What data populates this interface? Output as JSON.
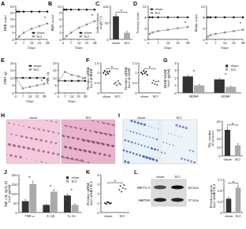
{
  "chart_data": [
    {
      "title": "A",
      "type": "line",
      "x": [
        1,
        3,
        7,
        14,
        21,
        28
      ],
      "xlabel": "Days",
      "ylabel": "BBB score",
      "xlim": [
        0,
        28
      ],
      "xticks": [
        0,
        7,
        14,
        21,
        28
      ],
      "ylim": [
        0,
        25
      ],
      "yticks": [
        0,
        5,
        10,
        15,
        20,
        25
      ],
      "legend": "lower right",
      "series": [
        {
          "name": "sham",
          "color": "#111111",
          "marker": "circle",
          "values": [
            21,
            21,
            21,
            21,
            21,
            21
          ]
        },
        {
          "name": "SCI",
          "color": "#888888",
          "marker": "square",
          "values": [
            0,
            2,
            5,
            8,
            10,
            12
          ]
        }
      ],
      "annotations": [
        "*"
      ]
    },
    {
      "title": "B",
      "type": "line",
      "x": [
        1,
        3,
        7,
        14,
        21,
        28
      ],
      "xlabel": "Days",
      "ylabel": "BMS score",
      "xlim": [
        0,
        28
      ],
      "xticks": [
        0,
        7,
        14,
        21,
        28
      ],
      "ylim": [
        0,
        10
      ],
      "yticks": [
        0,
        2,
        4,
        6,
        8,
        10
      ],
      "legend": "lower right",
      "series": [
        {
          "name": "sham",
          "color": "#111111",
          "marker": "circle",
          "values": [
            9,
            9,
            9,
            9,
            9,
            9
          ]
        },
        {
          "name": "SCI",
          "color": "#888888",
          "marker": "square",
          "values": [
            0,
            1,
            2,
            3.5,
            4.5,
            5.5
          ]
        }
      ],
      "annotations": [
        "*"
      ]
    },
    {
      "title": "C",
      "type": "bar",
      "categories": [
        "sham",
        "SCI"
      ],
      "values": [
        70,
        20
      ],
      "errors": [
        5,
        4
      ],
      "colors": [
        "#333333",
        "#aaaaaa"
      ],
      "ylabel": "Inclined plane angle (°)",
      "ylim": [
        0,
        100
      ],
      "yticks": [
        0,
        50,
        100
      ],
      "annotations": [
        "*"
      ]
    },
    {
      "title": "D",
      "type": "line",
      "x": [
        1,
        3,
        7,
        14,
        21,
        28
      ],
      "xlabel": "Days",
      "ylabel": "Sensory score",
      "xlim": [
        0,
        28
      ],
      "xticks": [
        0,
        7,
        14,
        21,
        28
      ],
      "ylim": [
        0,
        12
      ],
      "yticks": [
        0,
        4,
        8,
        12
      ],
      "legend": "upper left",
      "series": [
        {
          "name": "sham",
          "color": "#111111",
          "marker": "circle",
          "values": [
            8,
            8,
            8,
            8,
            8,
            8
          ]
        },
        {
          "name": "SCI",
          "color": "#888888",
          "marker": "square",
          "values": [
            2,
            2.5,
            3,
            3.5,
            4,
            4.5
          ]
        }
      ],
      "annotations": [
        "*"
      ]
    },
    {
      "type": "line",
      "x": [
        1,
        3,
        7,
        14,
        21,
        28
      ],
      "xlabel": "Days",
      "ylabel": "Motor score",
      "xlim": [
        0,
        28
      ],
      "xticks": [
        0,
        7,
        14,
        21,
        28
      ],
      "ylim": [
        0,
        12
      ],
      "yticks": [
        0,
        4,
        8,
        12
      ],
      "series": [
        {
          "name": "sham",
          "color": "#111111",
          "marker": "circle",
          "values": [
            8,
            8,
            8,
            8,
            8,
            8
          ]
        },
        {
          "name": "SCI",
          "color": "#888888",
          "marker": "square",
          "values": [
            1,
            1.5,
            2,
            2.5,
            3,
            3.5
          ]
        }
      ],
      "annotations": [
        "*"
      ]
    },
    {
      "title": "E",
      "type": "line",
      "x": [
        0,
        7,
        14,
        21,
        28
      ],
      "xlabel": "Days",
      "ylabel": "PWT (g)",
      "xlim": [
        0,
        28
      ],
      "xticks": [
        0,
        7,
        14,
        21,
        28
      ],
      "ylim": [
        0,
        20
      ],
      "yticks": [
        0,
        5,
        10,
        15,
        20
      ],
      "legend": "upper right",
      "series": [
        {
          "name": "sham",
          "color": "#111111",
          "marker": "circle",
          "values": [
            10,
            10,
            10,
            10,
            10
          ]
        },
        {
          "name": "SCI",
          "color": "#888888",
          "marker": "square",
          "values": [
            10,
            3,
            4,
            5,
            6
          ]
        }
      ],
      "annotations": [
        "*"
      ]
    },
    {
      "type": "line",
      "x": [
        0,
        7,
        14,
        21,
        28
      ],
      "xlabel": "Days",
      "ylabel": "PWL (s)",
      "xlim": [
        0,
        28
      ],
      "xticks": [
        0,
        7,
        14,
        21,
        28
      ],
      "ylim": [
        0,
        20
      ],
      "yticks": [
        0,
        5,
        10,
        15,
        20
      ],
      "series": [
        {
          "name": "sham",
          "color": "#111111",
          "marker": "circle",
          "values": [
            8,
            8,
            8,
            8,
            8
          ]
        },
        {
          "name": "SCI",
          "color": "#888888",
          "marker": "square",
          "values": [
            8,
            14,
            12,
            11,
            10
          ]
        }
      ],
      "annotations": [
        "*"
      ]
    },
    {
      "title": "F",
      "type": "dot",
      "categories": [
        "sham",
        "SCI"
      ],
      "colors": [
        "#222222",
        "#666666"
      ],
      "ylabel": "Relative mRNA level of BDNF",
      "ylim": [
        0,
        1.5
      ],
      "yticks": [
        0,
        0.5,
        1,
        1.5
      ],
      "groups": [
        {
          "values": [
            1.0,
            1.1,
            0.92,
            1.05,
            0.96,
            1.08
          ]
        },
        {
          "values": [
            0.45,
            0.52,
            0.38,
            0.6,
            0.48,
            0.42
          ]
        }
      ],
      "annotations": [
        "*"
      ]
    },
    {
      "type": "dot",
      "categories": [
        "sham",
        "SCI"
      ],
      "colors": [
        "#222222",
        "#666666"
      ],
      "ylabel": "Relative mRNA level of GDNF",
      "ylim": [
        0,
        1.5
      ],
      "yticks": [
        0,
        0.5,
        1,
        1.5
      ],
      "groups": [
        {
          "values": [
            1.02,
            0.94,
            1.1,
            0.98,
            1.06,
            0.9
          ]
        },
        {
          "values": [
            0.5,
            0.62,
            0.44,
            0.56,
            0.4,
            0.58
          ]
        }
      ],
      "annotations": [
        "*"
      ]
    },
    {
      "title": "G",
      "type": "bar",
      "categories": [
        "BDNF",
        "GDNF"
      ],
      "ylabel": "BDNF/GDNF level (pg/ml)",
      "ylim": [
        0,
        4
      ],
      "yticks": [
        0,
        1,
        2,
        3,
        4
      ],
      "legend": "upper right",
      "series": [
        {
          "name": "sham",
          "color": "#333333",
          "values": [
            2.2,
            1.8
          ],
          "errors": [
            0.2,
            0.15
          ]
        },
        {
          "name": "SCI",
          "color": "#aaaaaa",
          "values": [
            1.0,
            0.8
          ],
          "errors": [
            0.1,
            0.1
          ]
        }
      ],
      "annotations": [
        "*",
        "*"
      ]
    },
    {
      "type": "bar",
      "categories": [
        "sham",
        "SCI"
      ],
      "values": [
        30,
        12
      ],
      "errors": [
        3,
        2
      ],
      "colors": [
        "#333333",
        "#aaaaaa"
      ],
      "ylabel": "The number of neurons",
      "ylim": [
        0,
        40
      ],
      "yticks": [
        0,
        10,
        20,
        30,
        40
      ],
      "annotations": [
        "*"
      ]
    },
    {
      "title": "J",
      "type": "bar",
      "categories": [
        "TNF-α",
        "IL-1β",
        "IL-10"
      ],
      "ylabel": "TNF-α/IL-1β/IL-10 level (pg/ml)",
      "ylim": [
        0,
        200
      ],
      "yticks": [
        0,
        50,
        100,
        150,
        200
      ],
      "legend": "upper right",
      "series": [
        {
          "name": "sham",
          "color": "#333333",
          "values": [
            60,
            40,
            90
          ],
          "errors": [
            8,
            5,
            10
          ]
        },
        {
          "name": "SCI",
          "color": "#aaaaaa",
          "values": [
            150,
            110,
            40
          ],
          "errors": [
            15,
            12,
            6
          ]
        }
      ],
      "annotations": [
        "*",
        "*",
        "*"
      ]
    },
    {
      "title": "K",
      "type": "dot",
      "categories": [
        "sham",
        "SCI"
      ],
      "colors": [
        "#222222",
        "#666666"
      ],
      "ylabel": "Relative mRNA level of METTL3",
      "ylim": [
        0,
        4
      ],
      "yticks": [
        0,
        1,
        2,
        3,
        4
      ],
      "groups": [
        {
          "values": [
            1.0,
            0.9,
            1.1,
            1.05,
            0.95,
            0.98
          ]
        },
        {
          "values": [
            2.4,
            2.8,
            2.2,
            2.6,
            2.9,
            2.5
          ]
        }
      ],
      "annotations": [
        "*"
      ]
    },
    {
      "type": "bar",
      "categories": [
        "sham",
        "SCI"
      ],
      "values": [
        0.5,
        0.9
      ],
      "errors": [
        0.05,
        0.08
      ],
      "colors": [
        "#333333",
        "#aaaaaa"
      ],
      "ylabel": "Relative protein level of METTL3",
      "ylim": [
        0,
        1.2
      ],
      "yticks": [
        0,
        0.4,
        0.8,
        1.2
      ],
      "annotations": [
        "*"
      ]
    }
  ],
  "images": [
    {
      "title": "H",
      "labels": [
        "sham",
        "SCI"
      ]
    },
    {
      "title": "I",
      "labels": [
        "sham",
        "SCI"
      ]
    }
  ],
  "blot": {
    "title": "L",
    "lanes": [
      "sham",
      "SCI"
    ],
    "bands": [
      {
        "name": "METTL3",
        "size": "64 kDa"
      },
      {
        "name": "GAPDH",
        "size": "37 kDa"
      }
    ]
  }
}
